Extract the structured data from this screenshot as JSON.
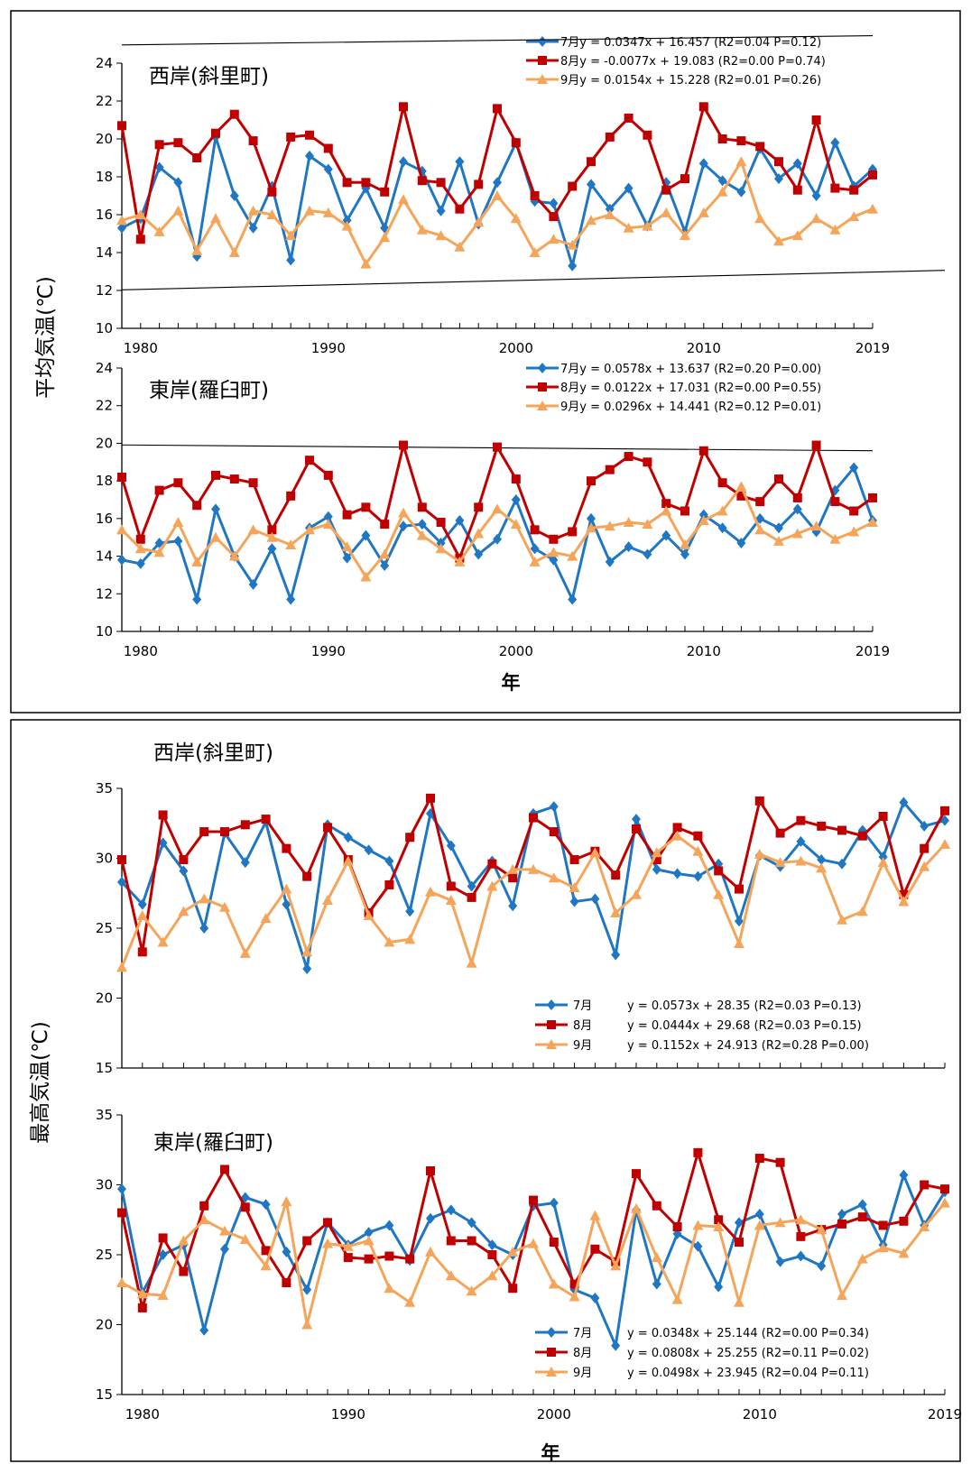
{
  "panels": [
    {
      "ylabel": "平均気温(℃)",
      "xlabel": "年"
    },
    {
      "ylabel": "最高気温(℃)",
      "xlabel": "年"
    }
  ],
  "chart_data": [
    {
      "type": "line",
      "title": "西岸(斜里町)",
      "ylabel": "平均気温(℃)",
      "ylim": [
        10,
        24
      ],
      "yticks": [
        "10",
        "12",
        "14",
        "16",
        "18",
        "20",
        "22",
        "24"
      ],
      "xlim": [
        1979,
        2019
      ],
      "xticks": [
        "1980",
        "1990",
        "2000",
        "2010",
        "2019"
      ],
      "x": [
        1979,
        1980,
        1981,
        1982,
        1983,
        1984,
        1985,
        1986,
        1987,
        1988,
        1989,
        1990,
        1991,
        1992,
        1993,
        1994,
        1995,
        1996,
        1997,
        1998,
        1999,
        2000,
        2001,
        2002,
        2003,
        2004,
        2005,
        2006,
        2007,
        2008,
        2009,
        2010,
        2011,
        2012,
        2013,
        2014,
        2015,
        2016,
        2017,
        2018,
        2019
      ],
      "legend_position": "top-right",
      "series": [
        {
          "name": "7月",
          "legend": "7月",
          "equation": "y = 0.0347x + 16.457 (R2=0.04  P=0.12)",
          "color": "#1f77c4",
          "marker": "diamond",
          "slope": 0.0347,
          "intercept": 16.457,
          "values": [
            15.3,
            15.8,
            18.5,
            17.7,
            13.8,
            20.1,
            17.0,
            15.3,
            17.5,
            13.6,
            19.1,
            18.4,
            15.7,
            17.4,
            15.3,
            18.8,
            18.3,
            16.2,
            18.8,
            15.5,
            17.7,
            19.8,
            16.7,
            16.6,
            13.3,
            17.6,
            16.3,
            17.4,
            15.4,
            17.7,
            15.1,
            18.7,
            17.8,
            17.2,
            19.5,
            17.9,
            18.7,
            17.0,
            19.8,
            17.5,
            18.4
          ]
        },
        {
          "name": "8月",
          "legend": "8月",
          "equation": "y = -0.0077x + 19.083 (R2=0.00  P=0.74)",
          "color": "#c00000",
          "marker": "square",
          "slope": -0.0077,
          "intercept": 19.083,
          "values": [
            20.7,
            14.7,
            19.7,
            19.8,
            19.0,
            20.3,
            21.3,
            19.9,
            17.2,
            20.1,
            20.2,
            19.5,
            17.7,
            17.7,
            17.2,
            21.7,
            17.8,
            17.7,
            16.3,
            17.6,
            21.6,
            19.8,
            17.0,
            15.9,
            17.5,
            18.8,
            20.1,
            21.1,
            20.2,
            17.3,
            17.9,
            21.7,
            20.0,
            19.9,
            19.6,
            18.8,
            17.3,
            21.0,
            17.4,
            17.3,
            18.1
          ]
        },
        {
          "name": "9月",
          "legend": "9月",
          "equation": "y = 0.0154x + 15.228 (R2=0.01  P=0.26)",
          "color": "#f5a55a",
          "marker": "triangle",
          "slope": 0.0154,
          "intercept": 15.228,
          "values": [
            15.7,
            16.0,
            15.1,
            16.2,
            14.1,
            15.8,
            14.0,
            16.2,
            16.0,
            14.9,
            16.2,
            16.1,
            15.4,
            13.4,
            14.8,
            16.8,
            15.2,
            14.9,
            14.3,
            15.6,
            17.0,
            15.8,
            14.0,
            14.7,
            14.4,
            15.7,
            16.0,
            15.3,
            15.4,
            16.1,
            14.9,
            16.1,
            17.2,
            18.8,
            15.8,
            14.6,
            14.9,
            15.8,
            15.2,
            15.9,
            16.3
          ]
        }
      ]
    },
    {
      "type": "line",
      "title": "東岸(羅臼町)",
      "ylabel": "平均気温(℃)",
      "ylim": [
        10,
        24
      ],
      "yticks": [
        "10",
        "12",
        "14",
        "16",
        "18",
        "20",
        "22",
        "24"
      ],
      "xlim": [
        1979,
        2019
      ],
      "xticks": [
        "1980",
        "1990",
        "2000",
        "2010",
        "2019"
      ],
      "x": [
        1979,
        1980,
        1981,
        1982,
        1983,
        1984,
        1985,
        1986,
        1987,
        1988,
        1989,
        1990,
        1991,
        1992,
        1993,
        1994,
        1995,
        1996,
        1997,
        1998,
        1999,
        2000,
        2001,
        2002,
        2003,
        2004,
        2005,
        2006,
        2007,
        2008,
        2009,
        2010,
        2011,
        2012,
        2013,
        2014,
        2015,
        2016,
        2017,
        2018,
        2019
      ],
      "legend_position": "top-right",
      "series": [
        {
          "name": "7月",
          "legend": "7月",
          "equation": "y = 0.0578x + 13.637 (R2=0.20  P=0.00)",
          "color": "#1f77c4",
          "marker": "diamond",
          "slope": 0.0578,
          "intercept": 13.637,
          "values": [
            13.8,
            13.6,
            14.7,
            14.8,
            11.7,
            16.5,
            14.0,
            12.5,
            14.4,
            11.7,
            15.5,
            16.1,
            13.9,
            15.1,
            13.5,
            15.6,
            15.7,
            14.7,
            15.9,
            14.1,
            14.9,
            17.0,
            14.4,
            13.8,
            11.7,
            16.0,
            13.7,
            14.5,
            14.1,
            15.1,
            14.1,
            16.2,
            15.5,
            14.7,
            16.0,
            15.5,
            16.5,
            15.3,
            17.5,
            18.7,
            15.9
          ]
        },
        {
          "name": "8月",
          "legend": "8月",
          "equation": "y = 0.0122x + 17.031 (R2=0.00  P=0.55)",
          "color": "#c00000",
          "marker": "square",
          "slope": 0.0122,
          "intercept": 17.031,
          "values": [
            18.2,
            14.9,
            17.5,
            17.9,
            16.7,
            18.3,
            18.1,
            17.9,
            15.4,
            17.2,
            19.1,
            18.3,
            16.2,
            16.6,
            15.7,
            19.9,
            16.6,
            15.8,
            13.9,
            16.6,
            19.8,
            18.1,
            15.4,
            14.9,
            15.3,
            18.0,
            18.6,
            19.3,
            19.0,
            16.8,
            16.4,
            19.6,
            17.9,
            17.2,
            16.9,
            18.1,
            17.1,
            19.9,
            16.9,
            16.4,
            17.1
          ]
        },
        {
          "name": "9月",
          "legend": "9月",
          "equation": "y = 0.0296x + 14.441 (R2=0.12  P=0.01)",
          "color": "#f5a55a",
          "marker": "triangle",
          "slope": 0.0296,
          "intercept": 14.441,
          "values": [
            15.4,
            14.4,
            14.2,
            15.8,
            13.7,
            15.0,
            14.0,
            15.4,
            15.0,
            14.6,
            15.4,
            15.7,
            14.5,
            12.9,
            14.1,
            16.3,
            15.1,
            14.4,
            13.7,
            15.2,
            16.5,
            15.7,
            13.7,
            14.2,
            14.0,
            15.5,
            15.6,
            15.8,
            15.7,
            16.4,
            14.6,
            15.9,
            16.4,
            17.7,
            15.4,
            14.8,
            15.2,
            15.6,
            14.9,
            15.3,
            15.8
          ]
        }
      ]
    },
    {
      "type": "line",
      "title": "西岸(斜里町)",
      "ylabel": "最高気温(℃)",
      "ylim": [
        15,
        35
      ],
      "yticks": [
        "15",
        "20",
        "25",
        "30",
        "35"
      ],
      "xlim": [
        1979,
        2019
      ],
      "xticks": [
        "1980",
        "1990",
        "2000",
        "2010",
        "2019"
      ],
      "x": [
        1979,
        1980,
        1981,
        1982,
        1983,
        1984,
        1985,
        1986,
        1987,
        1988,
        1989,
        1990,
        1991,
        1992,
        1993,
        1994,
        1995,
        1996,
        1997,
        1998,
        1999,
        2000,
        2001,
        2002,
        2003,
        2004,
        2005,
        2006,
        2007,
        2008,
        2009,
        2010,
        2011,
        2012,
        2013,
        2014,
        2015,
        2016,
        2017,
        2018,
        2019
      ],
      "legend_position": "bottom-right",
      "series": [
        {
          "name": "7月",
          "legend": "7月",
          "equation": "y = 0.0573x + 28.35 (R2=0.03  P=0.13)",
          "color": "#1f77c4",
          "marker": "diamond",
          "slope": 0.0573,
          "intercept": 28.35,
          "values": [
            28.3,
            26.7,
            31.1,
            29.1,
            25.0,
            31.8,
            29.7,
            32.6,
            26.7,
            22.1,
            32.4,
            31.5,
            30.6,
            29.8,
            26.2,
            33.2,
            30.9,
            28.0,
            29.8,
            26.6,
            33.2,
            33.7,
            26.9,
            27.1,
            23.1,
            32.8,
            29.2,
            28.9,
            28.7,
            29.6,
            25.5,
            30.2,
            29.4,
            31.2,
            29.9,
            29.6,
            32.0,
            30.1,
            34.0,
            32.3,
            32.7
          ]
        },
        {
          "name": "8月",
          "legend": "8月",
          "equation": "y = 0.0444x + 29.68 (R2=0.03  P=0.15)",
          "color": "#c00000",
          "marker": "square",
          "slope": 0.0444,
          "intercept": 29.68,
          "values": [
            29.9,
            23.3,
            33.1,
            29.9,
            31.9,
            31.9,
            32.4,
            32.8,
            30.7,
            28.7,
            32.2,
            29.9,
            26.1,
            28.1,
            31.5,
            34.3,
            28.0,
            27.2,
            29.6,
            28.6,
            32.9,
            31.9,
            29.9,
            30.5,
            28.8,
            32.1,
            29.9,
            32.2,
            31.6,
            29.1,
            27.8,
            34.1,
            31.8,
            32.7,
            32.3,
            32.0,
            31.6,
            33.0,
            27.4,
            30.7,
            33.4
          ]
        },
        {
          "name": "9月",
          "legend": "9月",
          "equation": "y = 0.1152x + 24.913 (R2=0.28  P=0.00)",
          "color": "#f5a55a",
          "marker": "triangle",
          "slope": 0.1152,
          "intercept": 24.913,
          "values": [
            22.2,
            25.9,
            24.0,
            26.2,
            27.1,
            26.5,
            23.2,
            25.7,
            27.8,
            23.3,
            27.0,
            29.8,
            25.9,
            24.0,
            24.2,
            27.6,
            27.0,
            22.5,
            28.0,
            29.2,
            29.2,
            28.6,
            27.9,
            30.4,
            26.1,
            27.4,
            30.4,
            31.6,
            30.5,
            27.4,
            23.9,
            30.3,
            29.7,
            29.8,
            29.3,
            25.6,
            26.2,
            29.7,
            26.9,
            29.4,
            31.0
          ]
        }
      ]
    },
    {
      "type": "line",
      "title": "東岸(羅臼町)",
      "ylabel": "最高気温(℃)",
      "ylim": [
        15,
        35
      ],
      "yticks": [
        "15",
        "20",
        "25",
        "30",
        "35"
      ],
      "xlim": [
        1979,
        2019
      ],
      "xticks": [
        "1980",
        "1990",
        "2000",
        "2010",
        "2019"
      ],
      "x": [
        1979,
        1980,
        1981,
        1982,
        1983,
        1984,
        1985,
        1986,
        1987,
        1988,
        1989,
        1990,
        1991,
        1992,
        1993,
        1994,
        1995,
        1996,
        1997,
        1998,
        1999,
        2000,
        2001,
        2002,
        2003,
        2004,
        2005,
        2006,
        2007,
        2008,
        2009,
        2010,
        2011,
        2012,
        2013,
        2014,
        2015,
        2016,
        2017,
        2018,
        2019
      ],
      "legend_position": "bottom-right",
      "series": [
        {
          "name": "7月",
          "legend": "7月",
          "equation": "y = 0.0348x + 25.144 (R2=0.00  P=0.34)",
          "color": "#1f77c4",
          "marker": "diamond",
          "slope": 0.0348,
          "intercept": 25.144,
          "values": [
            29.7,
            22.3,
            25.0,
            25.7,
            19.6,
            25.4,
            29.1,
            28.6,
            25.2,
            22.5,
            27.3,
            25.7,
            26.6,
            27.1,
            24.6,
            27.6,
            28.2,
            27.3,
            25.7,
            25.0,
            28.5,
            28.7,
            22.5,
            21.9,
            18.5,
            28.2,
            22.9,
            26.5,
            25.6,
            22.7,
            27.3,
            27.9,
            24.5,
            24.9,
            24.2,
            27.9,
            28.6,
            25.7,
            30.7,
            27.1,
            29.5
          ]
        },
        {
          "name": "8月",
          "legend": "8月",
          "equation": "y = 0.0808x + 25.255 (R2=0.11  P=0.02)",
          "color": "#c00000",
          "marker": "square",
          "slope": 0.0808,
          "intercept": 25.255,
          "values": [
            28.0,
            21.2,
            26.2,
            23.8,
            28.5,
            31.1,
            28.4,
            25.3,
            23.0,
            26.0,
            27.3,
            24.8,
            24.7,
            24.9,
            24.7,
            31.0,
            26.0,
            26.0,
            25.0,
            22.6,
            28.9,
            25.9,
            22.9,
            25.4,
            24.5,
            30.8,
            28.5,
            27.0,
            32.3,
            27.5,
            25.9,
            31.9,
            31.6,
            26.3,
            26.8,
            27.2,
            27.7,
            27.1,
            27.4,
            30.0,
            29.7
          ]
        },
        {
          "name": "9月",
          "legend": "9月",
          "equation": "y = 0.0498x + 23.945 (R2=0.04  P=0.11)",
          "color": "#f5a55a",
          "marker": "triangle",
          "slope": 0.0498,
          "intercept": 23.945,
          "values": [
            23.0,
            22.2,
            22.1,
            26.0,
            27.5,
            26.7,
            26.1,
            24.2,
            28.8,
            20.0,
            25.8,
            25.6,
            26.0,
            22.6,
            21.6,
            25.2,
            23.5,
            22.4,
            23.5,
            25.2,
            25.8,
            22.9,
            22.0,
            27.8,
            24.2,
            28.3,
            24.8,
            21.8,
            27.1,
            27.0,
            21.6,
            27.1,
            27.3,
            27.5,
            26.8,
            22.1,
            24.7,
            25.5,
            25.1,
            27.0,
            28.7
          ]
        }
      ]
    }
  ]
}
